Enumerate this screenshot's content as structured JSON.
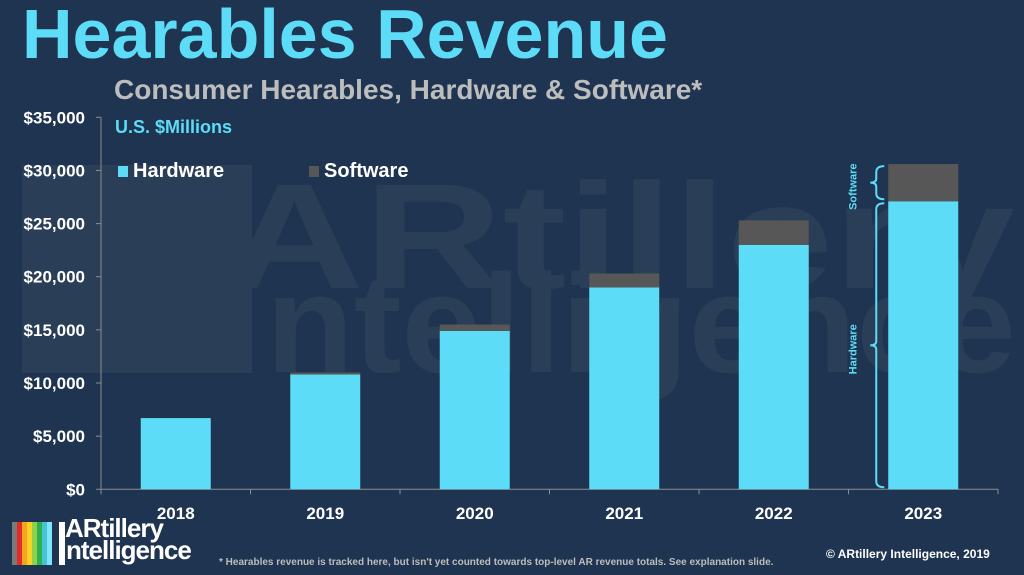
{
  "title": "Hearables Revenue",
  "subtitle": "Consumer Hearables, Hardware & Software*",
  "units": "U.S. $Millions",
  "footnote": "* Hearables revenue is tracked here, but isn't yet counted towards top-level AR revenue totals. See explanation slide.",
  "copyright": "© ARtillery Intelligence, 2019",
  "logo": {
    "line1": "ARtillery",
    "line2": "ntelligence",
    "stripe_colors": [
      "#7a7a7a",
      "#e32b2b",
      "#f4a41d",
      "#f8d223",
      "#8fd14f",
      "#2bb24c",
      "#48c3d6",
      "#7fe6f7"
    ]
  },
  "watermark": {
    "line1": "ARtillery",
    "line2": "ntelligence"
  },
  "colors": {
    "background": "#1f3450",
    "hardware": "#5cdcf7",
    "software": "#575757",
    "accent": "#5cdcf7"
  },
  "chart_data": {
    "type": "bar",
    "stacked": true,
    "title": "Hearables Revenue",
    "subtitle": "Consumer Hearables, Hardware & Software*",
    "ylabel": "U.S. $Millions",
    "xlabel": "",
    "categories": [
      "2018",
      "2019",
      "2020",
      "2021",
      "2022",
      "2023"
    ],
    "series": [
      {
        "name": "Hardware",
        "color": "#5cdcf7",
        "values": [
          6700,
          10800,
          14900,
          19000,
          23000,
          27100
        ]
      },
      {
        "name": "Software",
        "color": "#575757",
        "values": [
          0,
          200,
          600,
          1300,
          2300,
          3500
        ]
      }
    ],
    "ylim": [
      0,
      35000
    ],
    "yticks": [
      0,
      5000,
      10000,
      15000,
      20000,
      25000,
      30000,
      35000
    ],
    "ytick_labels": [
      "$0",
      "$5,000",
      "$10,000",
      "$15,000",
      "$20,000",
      "$25,000",
      "$30,000",
      "$35,000"
    ],
    "grid": false,
    "legend": {
      "position": "top-left",
      "entries": [
        "Hardware",
        "Software"
      ]
    },
    "annotations": [
      {
        "category": "2023",
        "type": "brace",
        "series": "Software",
        "text": "Software"
      },
      {
        "category": "2023",
        "type": "brace",
        "series": "Hardware",
        "text": "Hardware"
      }
    ]
  }
}
